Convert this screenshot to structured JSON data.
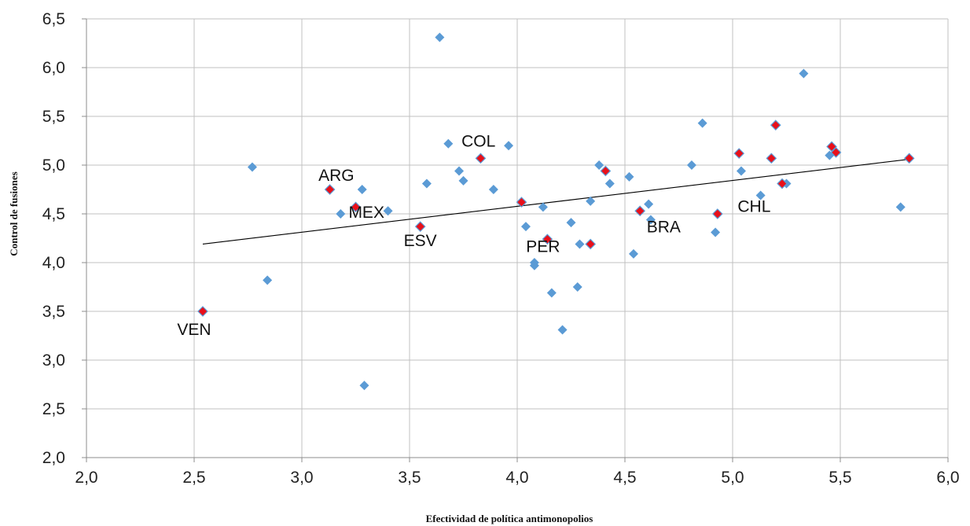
{
  "chart_data": {
    "type": "scatter",
    "xlabel": "Efectividad de política antimonopolios",
    "ylabel": "Control de fusiones",
    "xlim": [
      2.0,
      6.0
    ],
    "ylim": [
      2.0,
      6.5
    ],
    "x_ticks": [
      "2,0",
      "2,5",
      "3,0",
      "3,5",
      "4,0",
      "4,5",
      "5,0",
      "5,5",
      "6,0"
    ],
    "y_ticks": [
      "2,0",
      "2,5",
      "3,0",
      "3,5",
      "4,0",
      "4,5",
      "5,0",
      "5,5",
      "6,0",
      "6,5"
    ],
    "grid": true,
    "legend": "none",
    "colors": {
      "others": "#5b9bd5",
      "highlighted": "#e8101a",
      "trendline": "#000000",
      "grid": "#c0c0c0"
    },
    "series": [
      {
        "points": [
          [
            2.77,
            4.98
          ],
          [
            2.84,
            3.82
          ],
          [
            3.18,
            4.5
          ],
          [
            3.28,
            4.75
          ],
          [
            3.4,
            4.53
          ],
          [
            3.29,
            2.74
          ],
          [
            3.58,
            4.81
          ],
          [
            3.64,
            6.31
          ],
          [
            3.68,
            5.22
          ],
          [
            3.73,
            4.94
          ],
          [
            3.75,
            4.84
          ],
          [
            3.89,
            4.75
          ],
          [
            3.96,
            5.2
          ],
          [
            4.04,
            4.37
          ],
          [
            4.08,
            4.0
          ],
          [
            4.08,
            3.97
          ],
          [
            4.12,
            4.57
          ],
          [
            4.16,
            3.69
          ],
          [
            4.21,
            3.31
          ],
          [
            4.25,
            4.41
          ],
          [
            4.28,
            3.75
          ],
          [
            4.29,
            4.19
          ],
          [
            4.34,
            4.63
          ],
          [
            4.38,
            5.0
          ],
          [
            4.43,
            4.81
          ],
          [
            4.52,
            4.88
          ],
          [
            4.54,
            4.09
          ],
          [
            4.61,
            4.6
          ],
          [
            4.62,
            4.44
          ],
          [
            4.81,
            5.0
          ],
          [
            4.86,
            5.43
          ],
          [
            4.92,
            4.31
          ],
          [
            5.04,
            4.94
          ],
          [
            5.13,
            4.69
          ],
          [
            5.25,
            4.81
          ],
          [
            5.33,
            5.94
          ],
          [
            5.45,
            5.1
          ],
          [
            5.78,
            4.57
          ]
        ]
      },
      {
        "points": [
          [
            2.54,
            3.5
          ],
          [
            3.13,
            4.75
          ],
          [
            3.25,
            4.57
          ],
          [
            3.55,
            4.37
          ],
          [
            3.83,
            5.07
          ],
          [
            4.02,
            4.62
          ],
          [
            4.14,
            4.24
          ],
          [
            4.34,
            4.19
          ],
          [
            4.41,
            4.94
          ],
          [
            4.57,
            4.53
          ],
          [
            4.93,
            4.5
          ],
          [
            5.03,
            5.12
          ],
          [
            5.18,
            5.07
          ],
          [
            5.2,
            5.41
          ],
          [
            5.23,
            4.81
          ],
          [
            5.46,
            5.19
          ],
          [
            5.48,
            5.13
          ],
          [
            5.82,
            5.07
          ]
        ]
      }
    ],
    "trendline": {
      "x": [
        2.54,
        5.82
      ],
      "y": [
        4.19,
        5.06
      ]
    },
    "annotations": [
      {
        "text": "COL",
        "x": 3.82,
        "y": 5.19
      },
      {
        "text": "ARG",
        "x": 3.16,
        "y": 4.84
      },
      {
        "text": "MEX",
        "x": 3.3,
        "y": 4.46
      },
      {
        "text": "ESV",
        "x": 3.55,
        "y": 4.17
      },
      {
        "text": "PER",
        "x": 4.12,
        "y": 4.11
      },
      {
        "text": "BRA",
        "x": 4.68,
        "y": 4.31
      },
      {
        "text": "CHL",
        "x": 5.1,
        "y": 4.52
      },
      {
        "text": "VEN",
        "x": 2.5,
        "y": 3.26
      }
    ]
  }
}
